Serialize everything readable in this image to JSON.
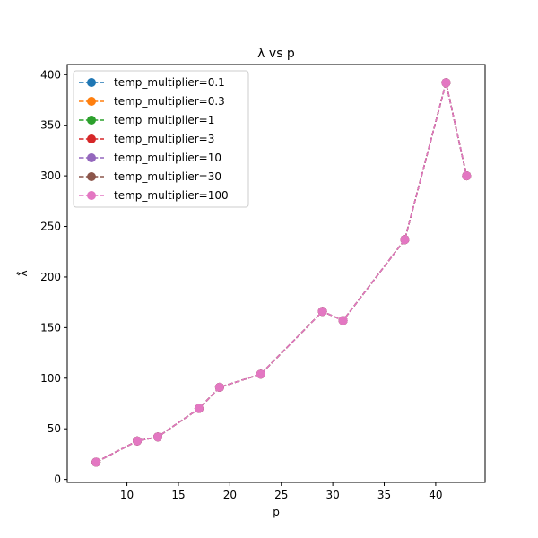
{
  "chart_data": {
    "type": "line",
    "title": "λ vs p",
    "xlabel": "p",
    "ylabel": "λ̂",
    "xlim": [
      4.2,
      44.8
    ],
    "ylim": [
      -3,
      410
    ],
    "xticks": [
      10,
      15,
      20,
      25,
      30,
      35,
      40
    ],
    "yticks": [
      0,
      50,
      100,
      150,
      200,
      250,
      300,
      350,
      400
    ],
    "grid": false,
    "legend_position": "top-left",
    "x": [
      7,
      11,
      13,
      17,
      19,
      23,
      29,
      31,
      37,
      41,
      43
    ],
    "series": [
      {
        "name": "temp_multiplier=0.1",
        "color": "#1f77b4",
        "values": [
          17,
          38,
          42,
          70,
          91,
          104,
          166,
          157,
          237,
          392,
          300
        ]
      },
      {
        "name": "temp_multiplier=0.3",
        "color": "#ff7f0e",
        "values": [
          17,
          38,
          42,
          70,
          91,
          104,
          166,
          157,
          237,
          392,
          300
        ]
      },
      {
        "name": "temp_multiplier=1",
        "color": "#2ca02c",
        "values": [
          17,
          38,
          42,
          70,
          91,
          104,
          166,
          157,
          237,
          392,
          300
        ]
      },
      {
        "name": "temp_multiplier=3",
        "color": "#d62728",
        "values": [
          17,
          38,
          42,
          70,
          91,
          104,
          166,
          157,
          237,
          392,
          300
        ]
      },
      {
        "name": "temp_multiplier=10",
        "color": "#9467bd",
        "values": [
          17,
          38,
          42,
          70,
          91,
          104,
          166,
          157,
          237,
          392,
          300
        ]
      },
      {
        "name": "temp_multiplier=30",
        "color": "#8c564b",
        "values": [
          17,
          38,
          42,
          70,
          91,
          104,
          166,
          157,
          237,
          392,
          300
        ]
      },
      {
        "name": "temp_multiplier=100",
        "color": "#e377c2",
        "values": [
          17,
          38,
          42,
          70,
          91,
          104,
          166,
          157,
          237,
          392,
          300
        ]
      }
    ]
  }
}
